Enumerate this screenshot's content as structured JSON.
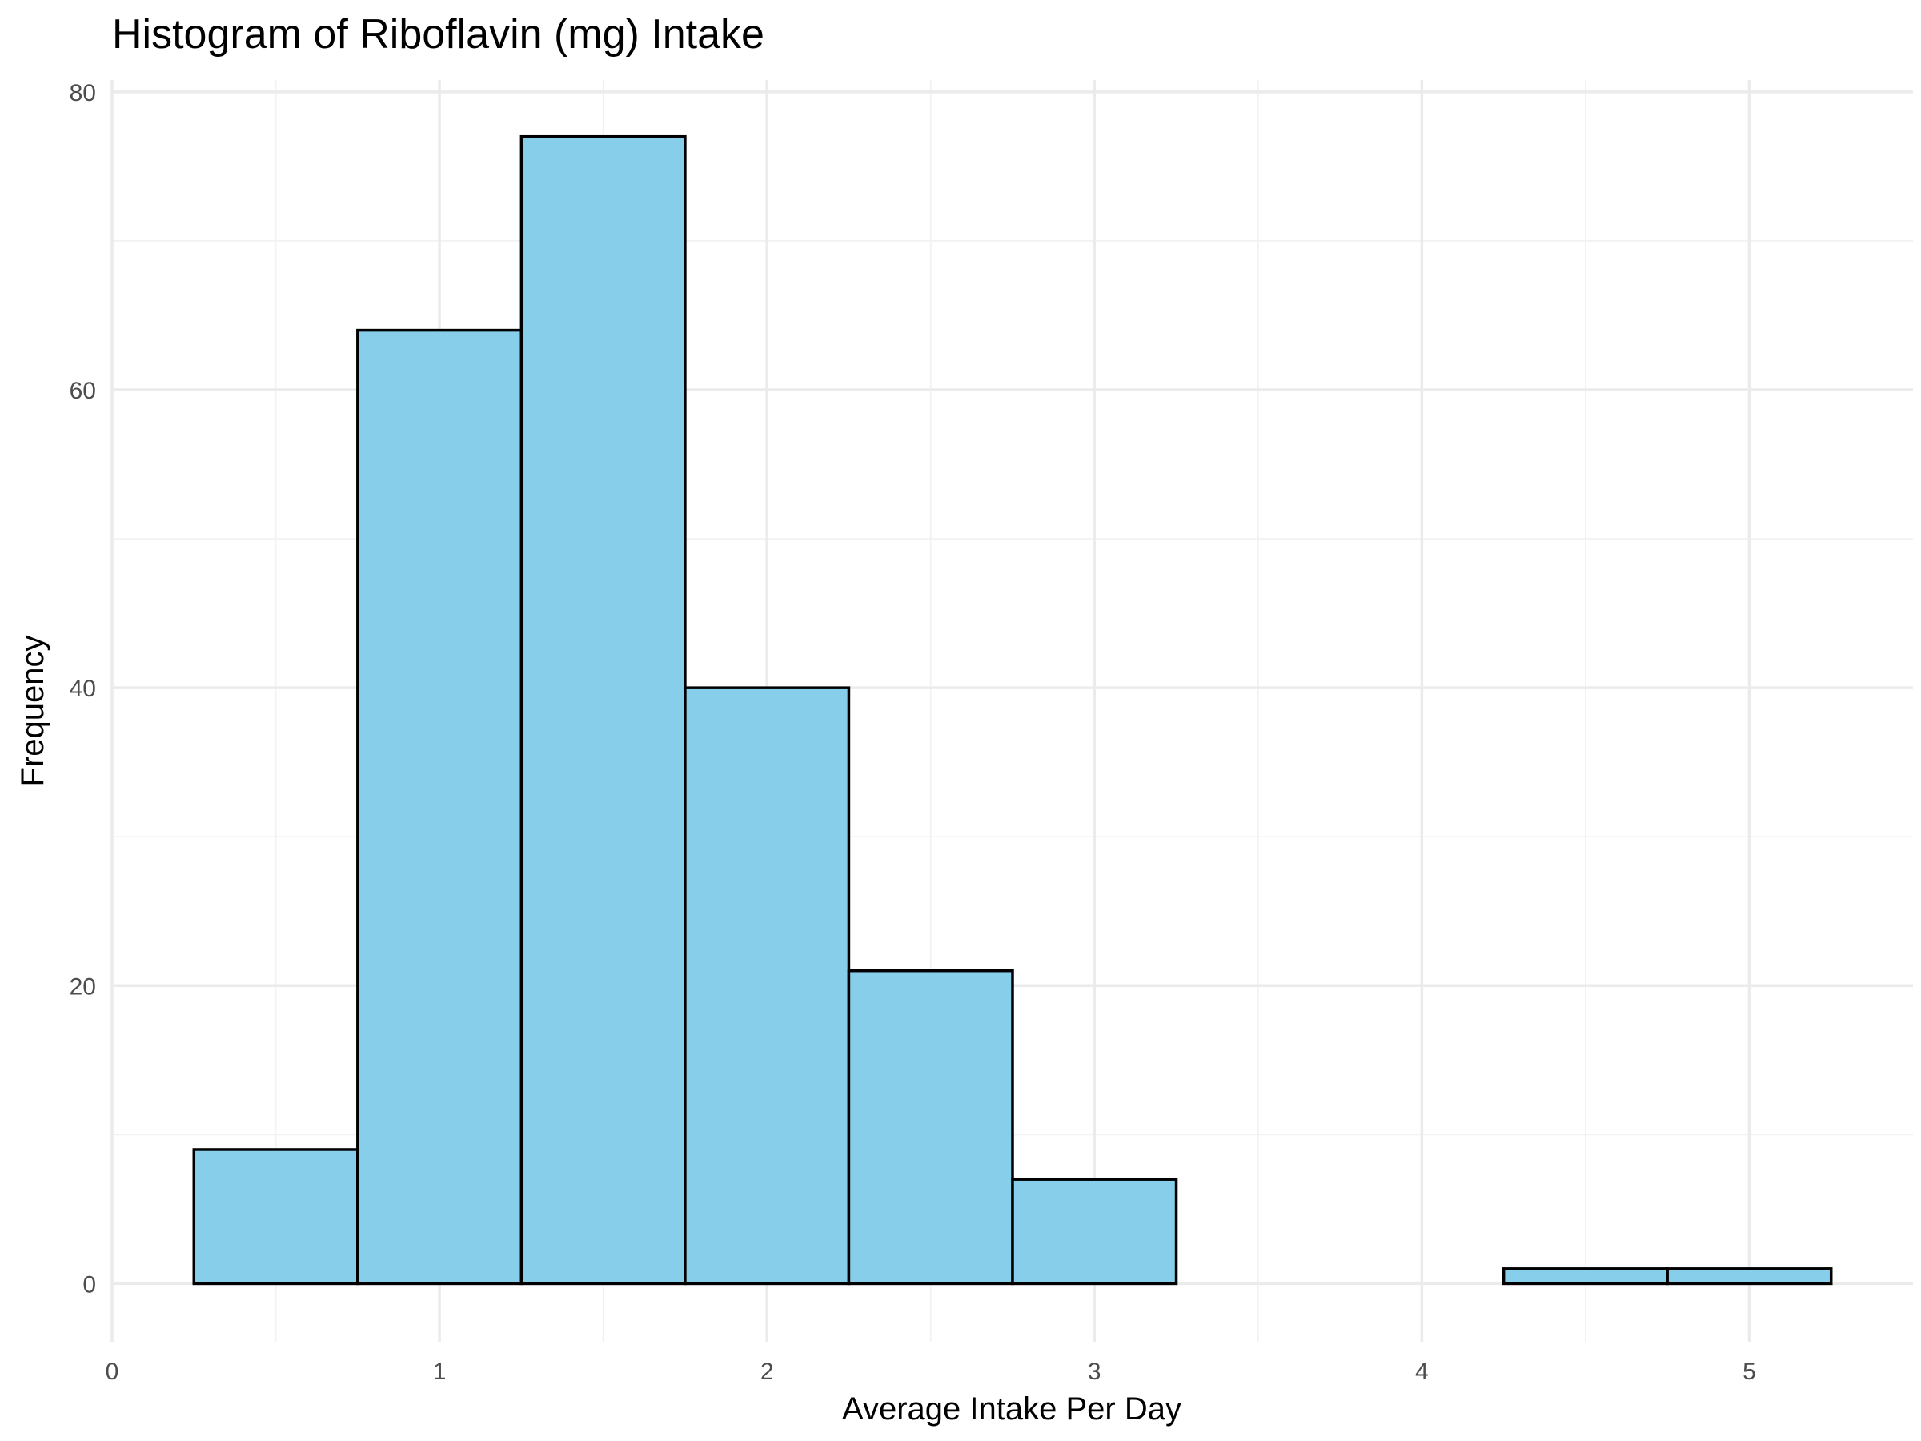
{
  "chart_data": {
    "type": "bar",
    "title": "Histogram of Riboflavin (mg) Intake",
    "xlabel": "Average Intake Per Day",
    "ylabel": "Frequency",
    "bin_width": 0.5,
    "bins": [
      {
        "start": 0.25,
        "end": 0.75,
        "count": 9
      },
      {
        "start": 0.75,
        "end": 1.25,
        "count": 64
      },
      {
        "start": 1.25,
        "end": 1.75,
        "count": 77
      },
      {
        "start": 1.75,
        "end": 2.25,
        "count": 40
      },
      {
        "start": 2.25,
        "end": 2.75,
        "count": 21
      },
      {
        "start": 2.75,
        "end": 3.25,
        "count": 7
      },
      {
        "start": 3.25,
        "end": 3.75,
        "count": 0
      },
      {
        "start": 3.75,
        "end": 4.25,
        "count": 0
      },
      {
        "start": 4.25,
        "end": 4.75,
        "count": 1
      },
      {
        "start": 4.75,
        "end": 5.25,
        "count": 1
      }
    ],
    "xlim": [
      0,
      5.5
    ],
    "ylim": [
      -3.9,
      80.8
    ],
    "x_ticks": [
      0,
      1,
      2,
      3,
      4,
      5
    ],
    "y_ticks": [
      0,
      20,
      40,
      60,
      80
    ],
    "x_minor_ticks": [
      0.5,
      1.5,
      2.5,
      3.5,
      4.5
    ],
    "y_minor_ticks": [
      10,
      30,
      50,
      70
    ],
    "grid": true,
    "legend": "none",
    "colors": {
      "fill": "#87CEEB",
      "outline": "#000000"
    }
  }
}
